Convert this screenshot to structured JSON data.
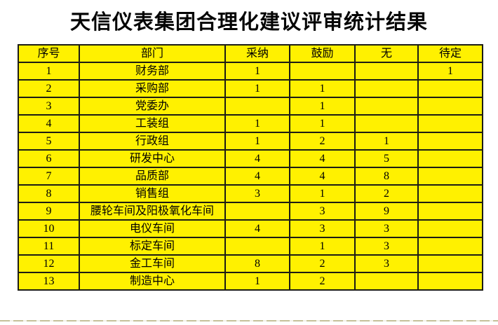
{
  "page": {
    "title": "天信仪表集团合理化建议评审统计结果"
  },
  "colors": {
    "cellFill": "#fff100",
    "borderCol": "#1c1c15",
    "titleCol": "#050505"
  },
  "table": {
    "headers": {
      "num": "序号",
      "dept": "部门",
      "adopt": "采纳",
      "encourage": "鼓励",
      "none": "无",
      "pending": "待定"
    },
    "rows": [
      {
        "num": "1",
        "dept": "财务部",
        "adopt": "1",
        "encourage": "",
        "none": "",
        "pending": "1"
      },
      {
        "num": "2",
        "dept": "采购部",
        "adopt": "1",
        "encourage": "1",
        "none": "",
        "pending": ""
      },
      {
        "num": "3",
        "dept": "党委办",
        "adopt": "",
        "encourage": "1",
        "none": "",
        "pending": ""
      },
      {
        "num": "4",
        "dept": "工装组",
        "adopt": "1",
        "encourage": "1",
        "none": "",
        "pending": ""
      },
      {
        "num": "5",
        "dept": "行政组",
        "adopt": "1",
        "encourage": "2",
        "none": "1",
        "pending": ""
      },
      {
        "num": "6",
        "dept": "研发中心",
        "adopt": "4",
        "encourage": "4",
        "none": "5",
        "pending": ""
      },
      {
        "num": "7",
        "dept": "品质部",
        "adopt": "4",
        "encourage": "4",
        "none": "8",
        "pending": ""
      },
      {
        "num": "8",
        "dept": "销售组",
        "adopt": "3",
        "encourage": "1",
        "none": "2",
        "pending": ""
      },
      {
        "num": "9",
        "dept": "腰轮车间及阳极氧化车间",
        "adopt": "",
        "encourage": "3",
        "none": "9",
        "pending": ""
      },
      {
        "num": "10",
        "dept": "电仪车间",
        "adopt": "4",
        "encourage": "3",
        "none": "3",
        "pending": ""
      },
      {
        "num": "11",
        "dept": "标定车间",
        "adopt": "",
        "encourage": "1",
        "none": "3",
        "pending": ""
      },
      {
        "num": "12",
        "dept": "金工车间",
        "adopt": "8",
        "encourage": "2",
        "none": "3",
        "pending": ""
      },
      {
        "num": "13",
        "dept": "制造中心",
        "adopt": "1",
        "encourage": "2",
        "none": "",
        "pending": ""
      }
    ]
  }
}
